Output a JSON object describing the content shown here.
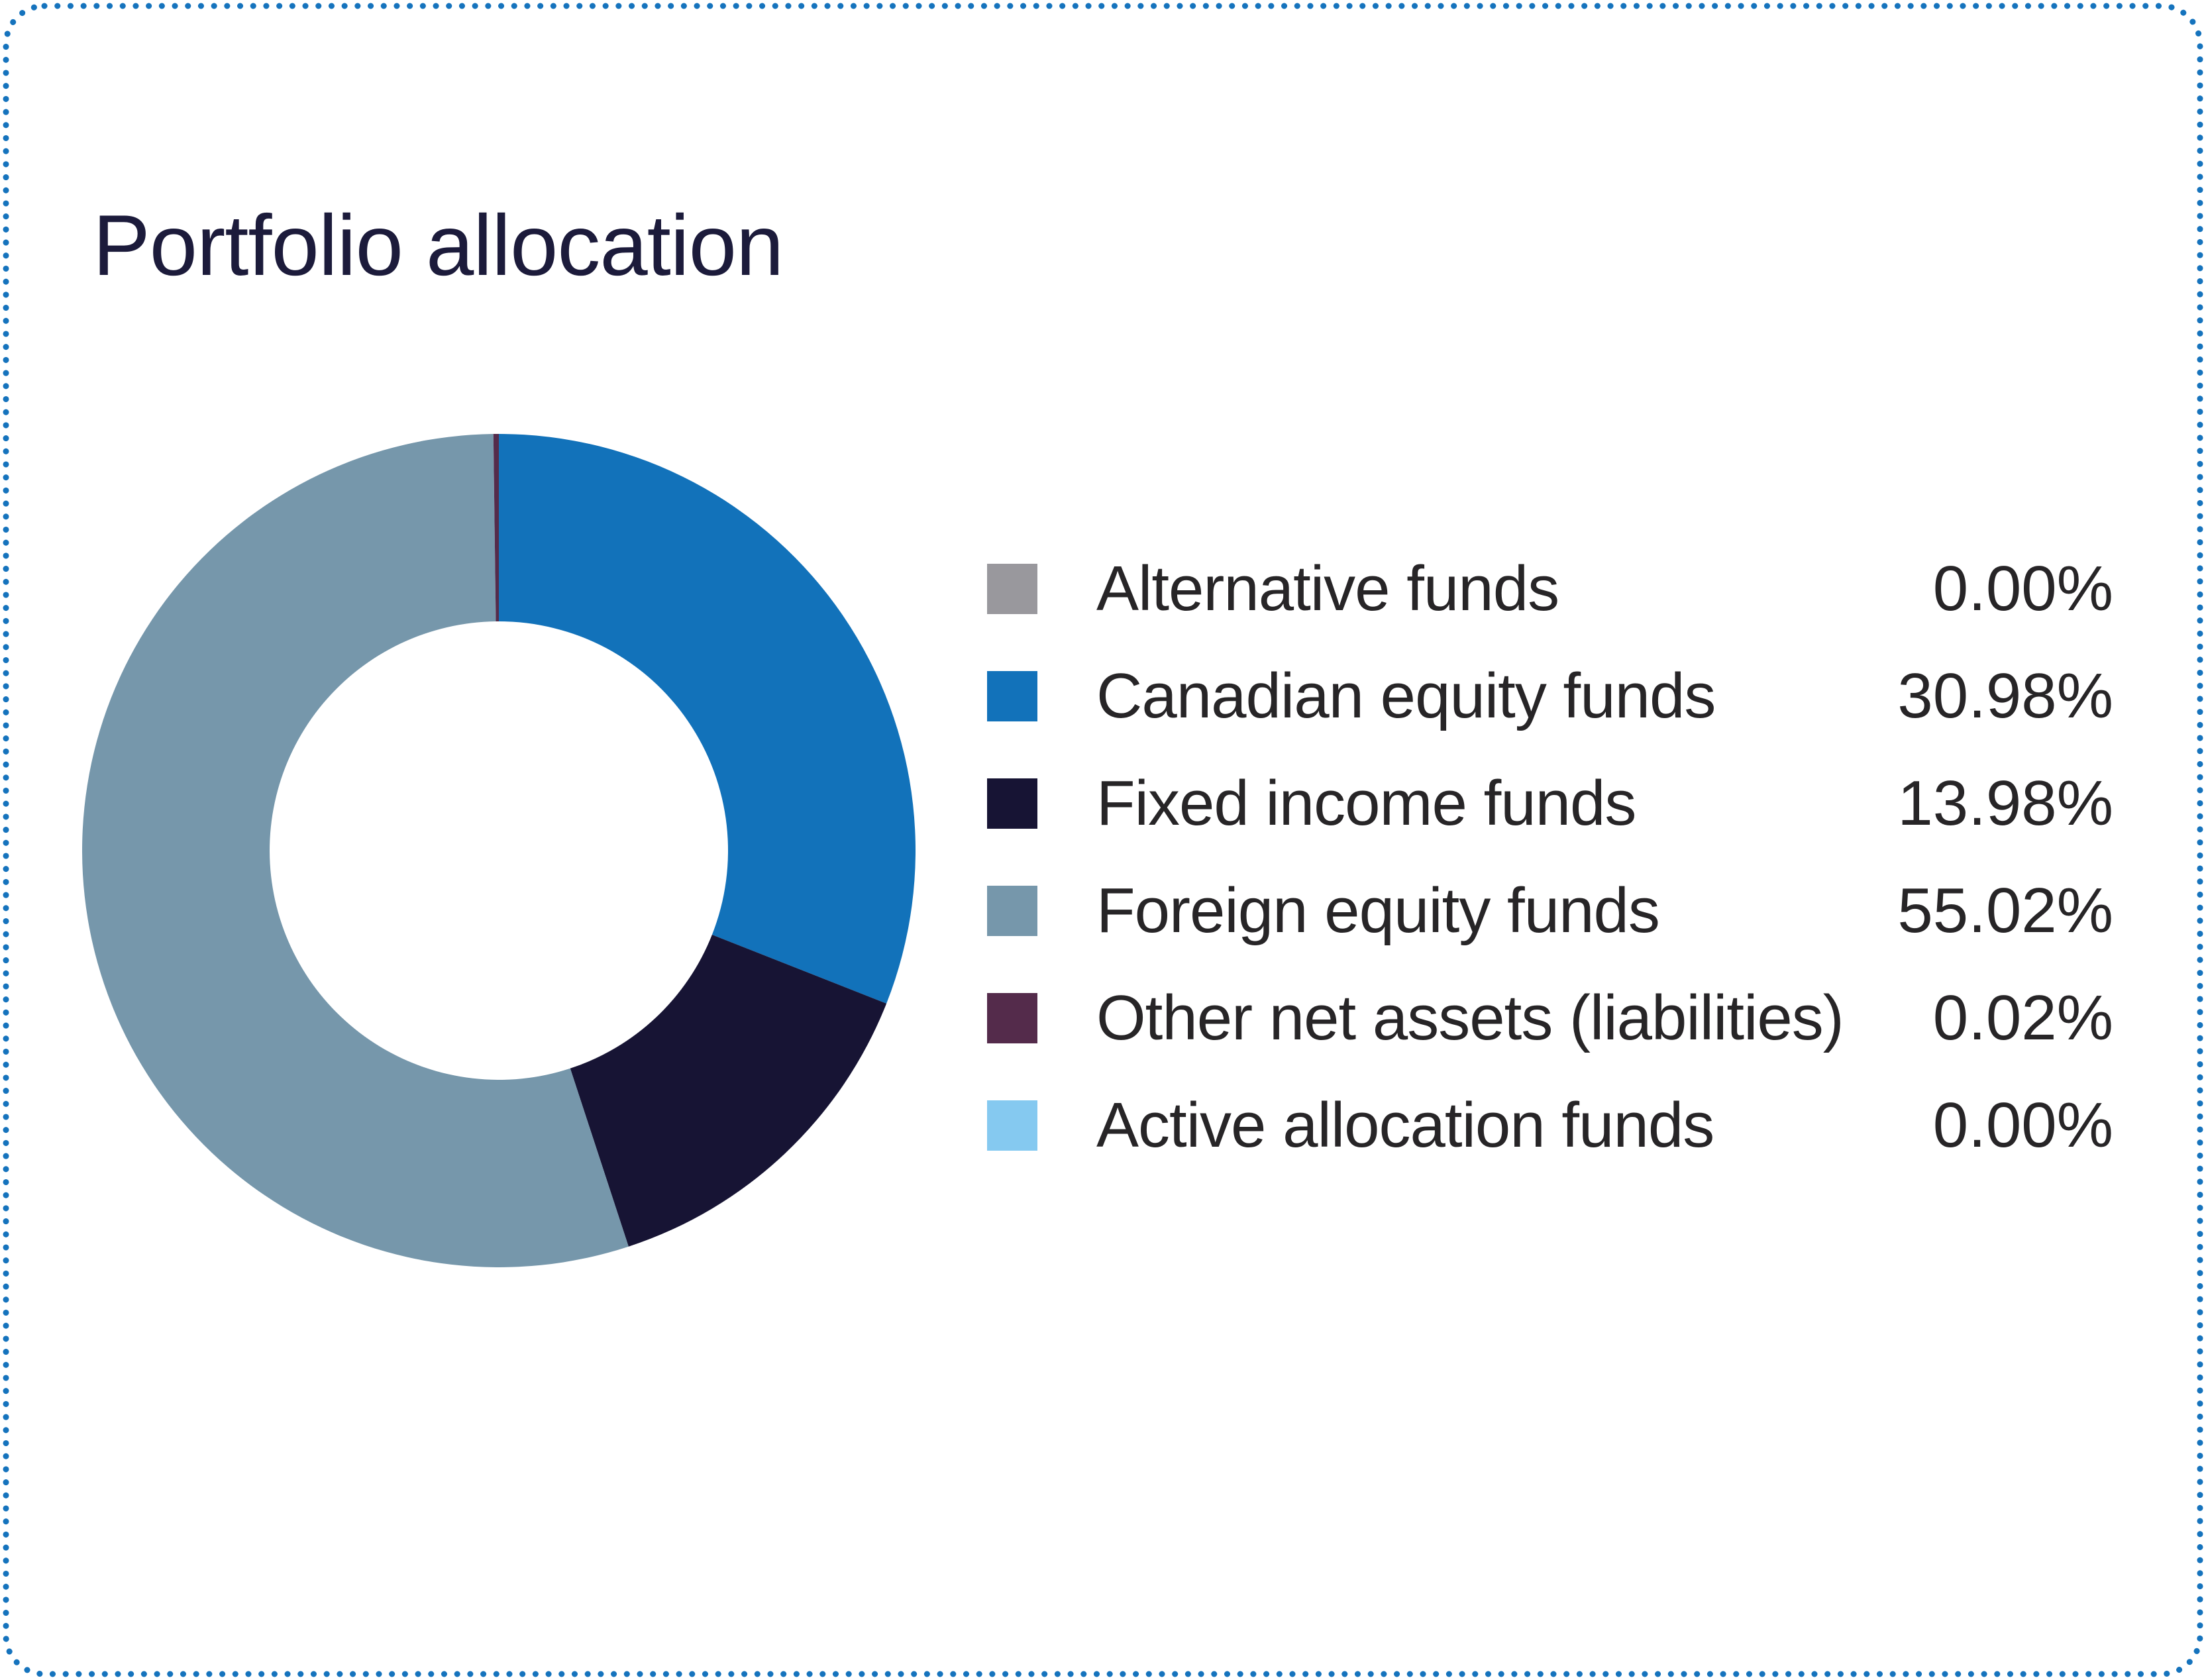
{
  "card": {
    "title": "Portfolio allocation",
    "background": "#ffffff",
    "border_color": "#1573bd",
    "border_style": "dotted-rounded-rect"
  },
  "text_colors": {
    "title": "#1c1b3b",
    "legend": "#272527"
  },
  "chart_data": {
    "type": "pie",
    "subtype": "donut",
    "title": "Portfolio allocation",
    "legend_position": "right",
    "direction": "clockwise",
    "start_angle_deg": 0,
    "inner_radius_ratio": 0.55,
    "total": 100,
    "series": [
      {
        "name": "Alternative funds",
        "value": 0.0,
        "display": "0.00%",
        "color": "#99989d"
      },
      {
        "name": "Canadian equity funds",
        "value": 30.98,
        "display": "30.98%",
        "color": "#1272ba"
      },
      {
        "name": "Fixed income funds",
        "value": 13.98,
        "display": "13.98%",
        "color": "#171434"
      },
      {
        "name": "Foreign equity funds",
        "value": 55.02,
        "display": "55.02%",
        "color": "#7697ab"
      },
      {
        "name": "Other net assets (liabilities)",
        "value": 0.02,
        "display": "0.02%",
        "color": "#542b4b"
      },
      {
        "name": "Active allocation funds",
        "value": 0.0,
        "display": "0.00%",
        "color": "#85c9f0"
      }
    ]
  }
}
